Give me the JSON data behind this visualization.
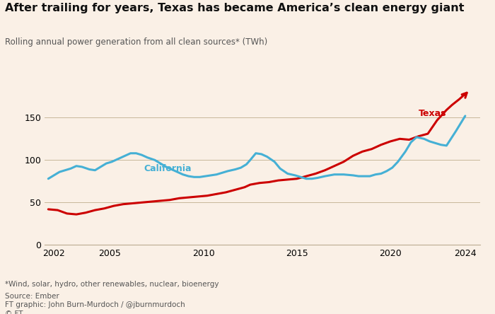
{
  "title": "After trailing for years, Texas has became America’s clean energy giant",
  "subtitle": "Rolling annual power generation from all clean sources* (TWh)",
  "footnote1": "*Wind, solar, hydro, other renewables, nuclear, bioenergy",
  "footnote2": "Source: Ember",
  "footnote3": "FT graphic: John Burn-Murdoch / @jburnmurdoch",
  "footnote4": "© FT",
  "background_color": "#faf0e6",
  "texas_color": "#cc0000",
  "california_color": "#45b0d5",
  "texas_label": "Texas",
  "california_label": "California",
  "ylim": [
    0,
    185
  ],
  "yticks": [
    0,
    50,
    100,
    150
  ],
  "xlim": [
    2001.5,
    2024.8
  ],
  "xticks": [
    2002,
    2005,
    2010,
    2015,
    2020,
    2024
  ],
  "texas_x": [
    2001.7,
    2002.2,
    2002.7,
    2003.2,
    2003.7,
    2004.2,
    2004.7,
    2005.2,
    2005.7,
    2006.2,
    2006.7,
    2007.2,
    2007.7,
    2008.2,
    2008.7,
    2009.2,
    2009.7,
    2010.2,
    2010.7,
    2011.2,
    2011.7,
    2012.2,
    2012.5,
    2013.0,
    2013.5,
    2014.0,
    2014.5,
    2015.0,
    2015.5,
    2016.0,
    2016.5,
    2017.0,
    2017.5,
    2018.0,
    2018.5,
    2019.0,
    2019.5,
    2020.0,
    2020.5,
    2021.0,
    2021.5,
    2022.0,
    2022.5,
    2023.0,
    2023.3,
    2023.7,
    2024.0
  ],
  "texas_y": [
    42,
    41,
    37,
    36,
    38,
    41,
    43,
    46,
    48,
    49,
    50,
    51,
    52,
    53,
    55,
    56,
    57,
    58,
    60,
    62,
    65,
    68,
    71,
    73,
    74,
    76,
    77,
    78,
    81,
    84,
    88,
    93,
    98,
    105,
    110,
    113,
    118,
    122,
    125,
    124,
    128,
    131,
    147,
    159,
    165,
    172,
    178
  ],
  "california_x": [
    2001.7,
    2002.0,
    2002.3,
    2002.6,
    2002.9,
    2003.2,
    2003.5,
    2003.9,
    2004.2,
    2004.5,
    2004.8,
    2005.1,
    2005.4,
    2005.8,
    2006.1,
    2006.4,
    2006.7,
    2007.0,
    2007.4,
    2007.7,
    2008.0,
    2008.3,
    2008.6,
    2008.9,
    2009.2,
    2009.5,
    2009.8,
    2010.1,
    2010.4,
    2010.7,
    2011.0,
    2011.3,
    2011.7,
    2012.0,
    2012.3,
    2012.5,
    2012.8,
    2013.1,
    2013.4,
    2013.8,
    2014.1,
    2014.5,
    2014.9,
    2015.2,
    2015.5,
    2015.8,
    2016.1,
    2016.5,
    2017.0,
    2017.5,
    2018.0,
    2018.3,
    2018.6,
    2018.9,
    2019.2,
    2019.5,
    2019.8,
    2020.1,
    2020.4,
    2020.8,
    2021.1,
    2021.4,
    2021.8,
    2022.1,
    2022.4,
    2022.7,
    2023.0,
    2023.5,
    2024.0
  ],
  "california_y": [
    78,
    82,
    86,
    88,
    90,
    93,
    92,
    89,
    88,
    92,
    96,
    98,
    101,
    105,
    108,
    108,
    106,
    103,
    100,
    96,
    92,
    89,
    86,
    83,
    81,
    80,
    80,
    81,
    82,
    83,
    85,
    87,
    89,
    91,
    95,
    100,
    108,
    107,
    104,
    98,
    90,
    84,
    82,
    80,
    78,
    78,
    79,
    81,
    83,
    83,
    82,
    81,
    81,
    81,
    83,
    84,
    87,
    91,
    98,
    110,
    121,
    127,
    125,
    122,
    120,
    118,
    117,
    134,
    152
  ]
}
